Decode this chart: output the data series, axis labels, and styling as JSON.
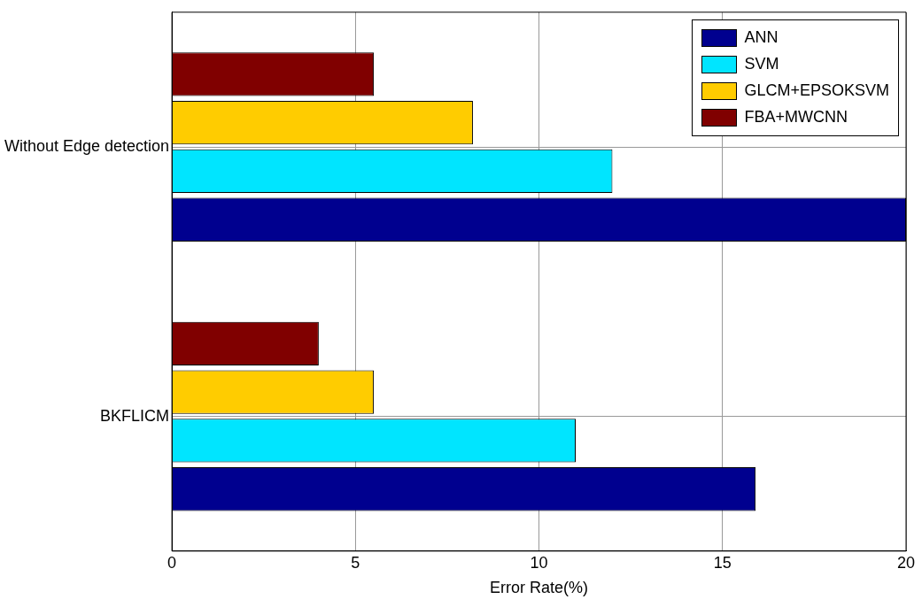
{
  "chart_data": {
    "type": "bar",
    "orientation": "horizontal",
    "xlabel": "Error Rate(%)",
    "categories": [
      "Without Edge detection",
      "BKFLICM"
    ],
    "series": [
      {
        "name": "ANN",
        "color": "#00008f",
        "values": [
          20,
          15.9
        ]
      },
      {
        "name": "SVM",
        "color": "#00e5ff",
        "values": [
          12,
          11
        ]
      },
      {
        "name": "GLCM+EPSOKSVM",
        "color": "#ffcc00",
        "values": [
          8.2,
          5.5
        ]
      },
      {
        "name": "FBA+MWCNN",
        "color": "#800000",
        "values": [
          5.5,
          4
        ]
      }
    ],
    "xlim": [
      0,
      20
    ],
    "xticks": [
      0,
      5,
      10,
      15,
      20
    ],
    "grid": true,
    "legend": "top right"
  }
}
